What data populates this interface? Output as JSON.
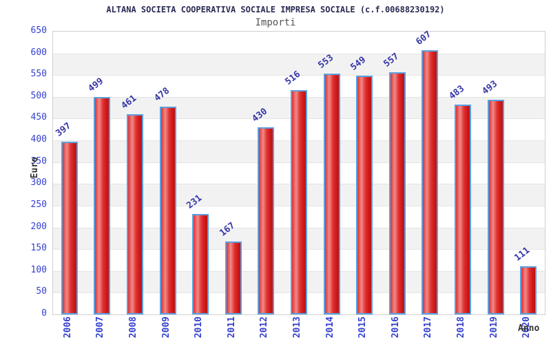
{
  "chart_data": {
    "type": "bar",
    "title": "ALTANA SOCIETA COOPERATIVA SOCIALE IMPRESA SOCIALE (c.f.00688230192)",
    "subtitle": "Importi",
    "xlabel": "Anno",
    "ylabel": "Euro",
    "categories": [
      "2006",
      "2007",
      "2008",
      "2009",
      "2010",
      "2011",
      "2012",
      "2013",
      "2014",
      "2015",
      "2016",
      "2017",
      "2018",
      "2019",
      "2020"
    ],
    "values": [
      397,
      499,
      461,
      478,
      231,
      167,
      430,
      516,
      553,
      549,
      557,
      607,
      483,
      493,
      111
    ],
    "ylim": [
      0,
      650
    ],
    "ytick_step": 50,
    "grid": "horizontal-bands",
    "legend": "none",
    "colors": {
      "bar_fill_main": "#e23030",
      "bar_fill_highlight": "#ee8b89",
      "bar_fill_dark": "#bd1212",
      "bar_border": "#5b9fe0",
      "value_label": "#3636a8",
      "tick_label": "#3540cc",
      "axis_title": "#333333",
      "title": "#2a2a55",
      "subtitle": "#555555",
      "band_alt": "#f2f2f2",
      "plot_border": "#cfcfcf"
    }
  }
}
